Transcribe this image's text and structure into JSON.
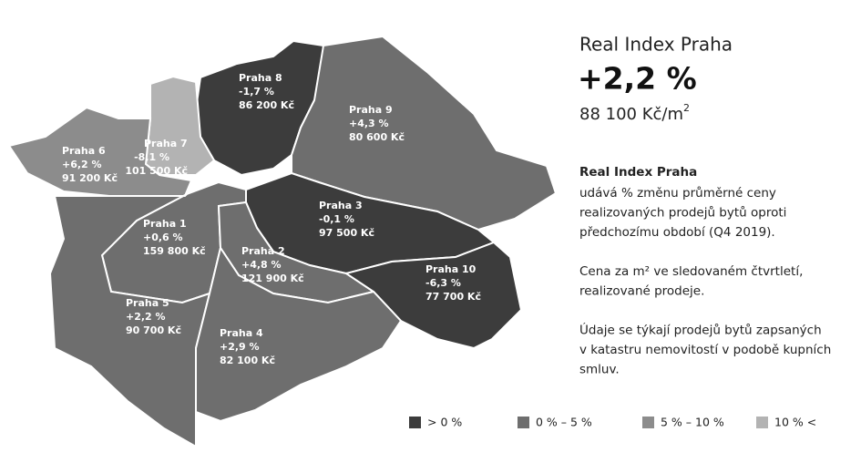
{
  "map": {
    "districts": [
      {
        "name": "Praha 8",
        "change": "-1,7 %",
        "price": "86 200 Kč",
        "color": "#3c3c3c"
      },
      {
        "name": "Praha 9",
        "change": "+4,3 %",
        "price": "80 600 Kč",
        "color": "#6e6e6e"
      },
      {
        "name": "Praha 7",
        "change": "-8,1 %",
        "price": "101 500 Kč",
        "color": "#b3b3b3"
      },
      {
        "name": "Praha 6",
        "change": "+6,2 %",
        "price": "91 200 Kč",
        "color": "#8c8c8c"
      },
      {
        "name": "Praha 1",
        "change": "+0,6 %",
        "price": "159 800 Kč",
        "color": "#6e6e6e"
      },
      {
        "name": "Praha 3",
        "change": "-0,1 %",
        "price": "97 500 Kč",
        "color": "#3c3c3c"
      },
      {
        "name": "Praha 2",
        "change": "+4,8 %",
        "price": "121 900 Kč",
        "color": "#6e6e6e"
      },
      {
        "name": "Praha 10",
        "change": "-6,3 %",
        "price": "77 700 Kč",
        "color": "#3c3c3c"
      },
      {
        "name": "Praha 5",
        "change": "+2,2 %",
        "price": "90 700 Kč",
        "color": "#6e6e6e"
      },
      {
        "name": "Praha 4",
        "change": "+2,9 %",
        "price": "82 100 Kč",
        "color": "#6e6e6e"
      }
    ],
    "legend": [
      {
        "label": "> 0 %",
        "color": "#3c3c3c"
      },
      {
        "label": "0 % – 5 %",
        "color": "#6e6e6e"
      },
      {
        "label": "5 % – 10 %",
        "color": "#8c8c8c"
      },
      {
        "label": "10 % <",
        "color": "#b3b3b3"
      }
    ]
  },
  "panel": {
    "title": "Real Index Praha",
    "value": "+2,2 %",
    "price": "88 100 Kč/m",
    "price_sup": "2",
    "heading": "Real Index Praha",
    "paragraphs": [
      [
        "udává % změnu průměrné ceny",
        "realizovaných prodejů bytů oproti",
        "předchozímu období (Q4 2019)."
      ],
      [
        "Cena za m² ve sledovaném čtvrtletí,",
        "realizované prodeje."
      ],
      [
        "Údaje se týkají prodejů bytů zapsaných",
        "v katastru nemovitostí v podobě kupních",
        "smluv."
      ]
    ]
  }
}
